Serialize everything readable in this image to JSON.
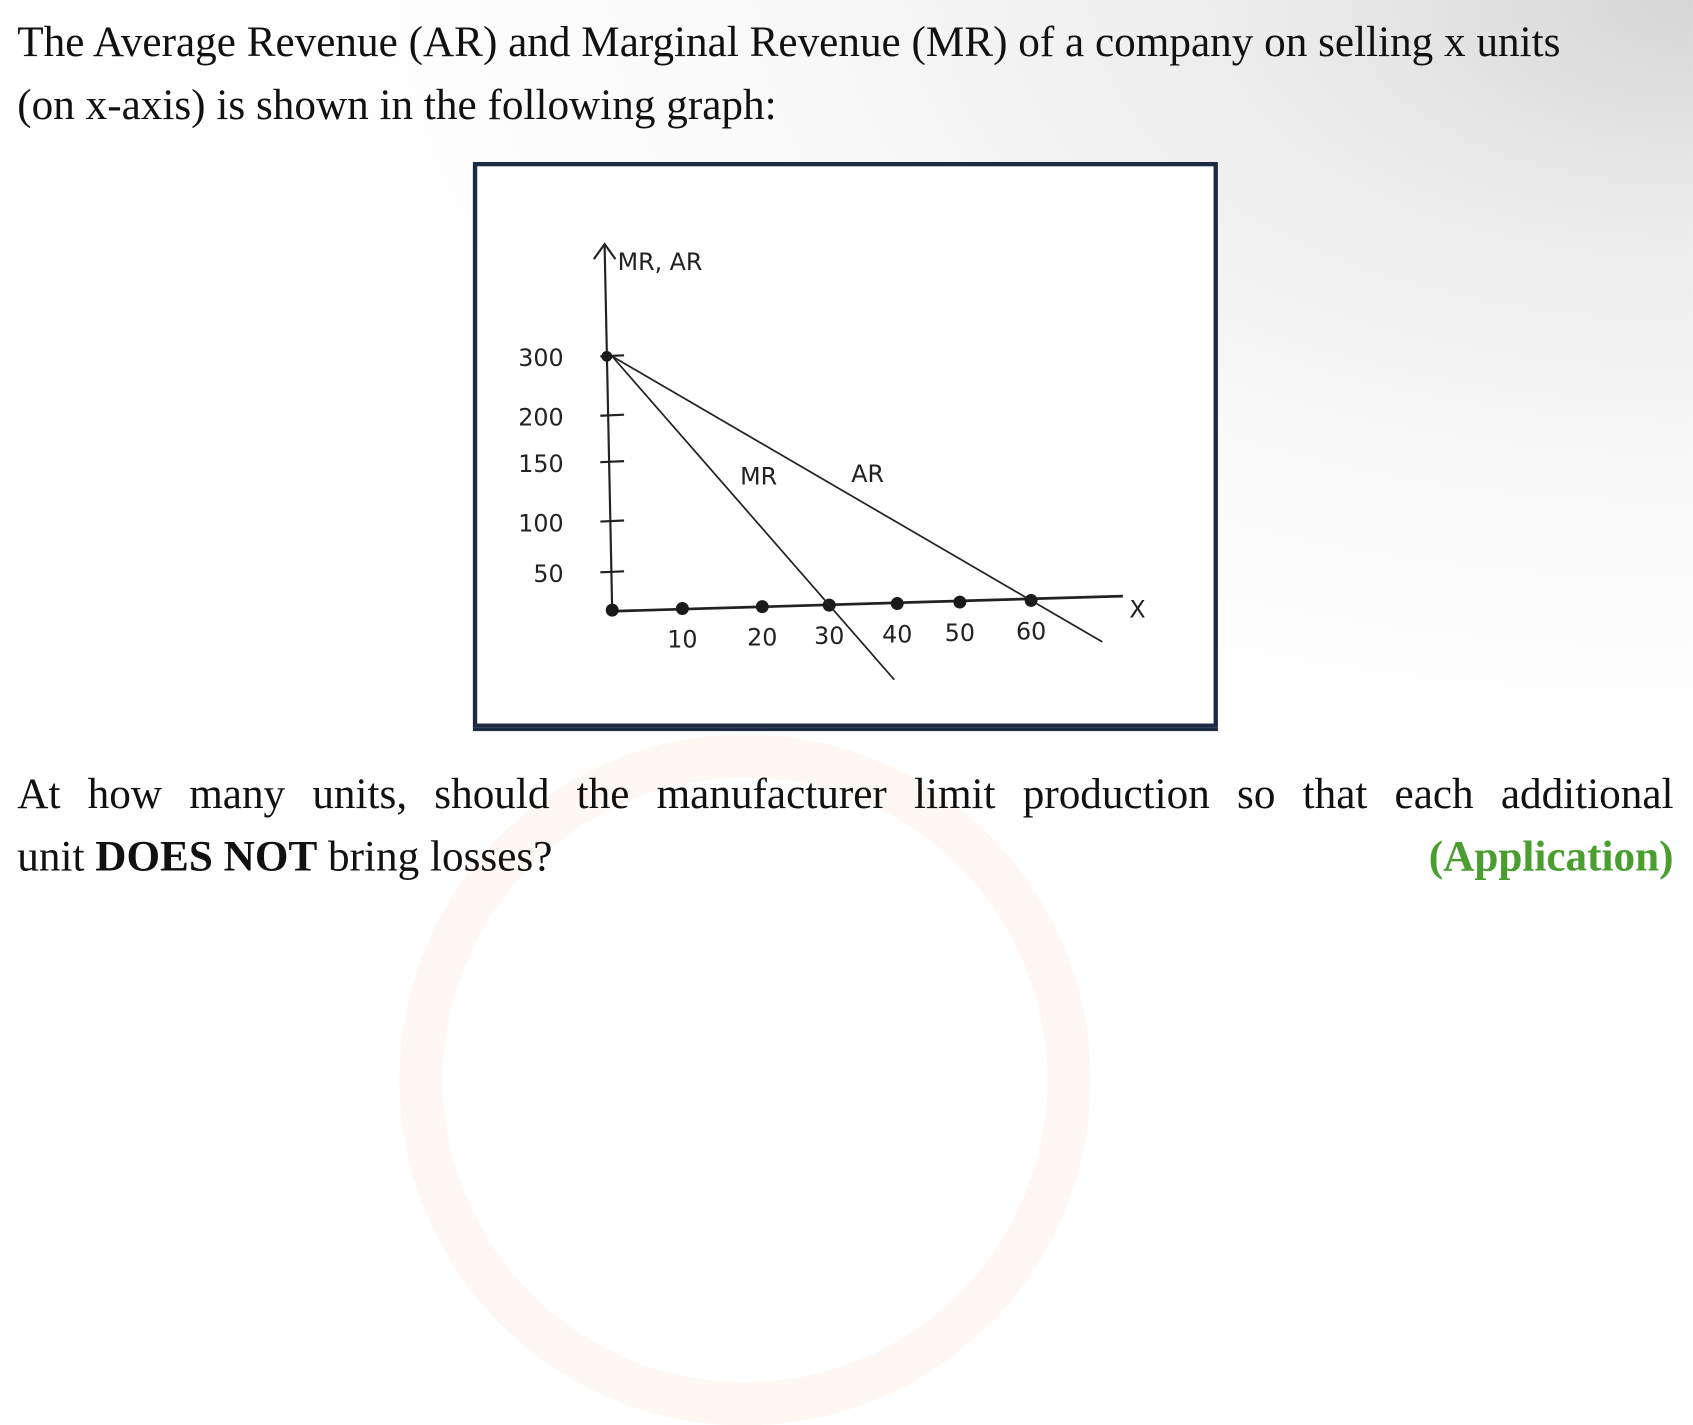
{
  "question": {
    "line1": "The Average Revenue (AR) and Marginal Revenue (MR) of a company on selling x units",
    "line2": "(on x-axis) is shown in the following graph:",
    "prompt_line1": "At how many units, should the manufacturer limit production so that each additional",
    "prompt_line2_pre": "unit ",
    "prompt_line2_bold": "DOES NOT",
    "prompt_line2_post": " bring losses?",
    "tag": "(Application)",
    "tag_color": "#4a9e2f"
  },
  "chart_data": {
    "type": "line",
    "title": "",
    "xlabel": "X",
    "ylabel": "MR, AR",
    "x_ticks": [
      10,
      20,
      30,
      40,
      50,
      60
    ],
    "x_tick_labels": [
      "10",
      "20",
      "30",
      "40",
      "50",
      "60"
    ],
    "y_ticks": [
      50,
      100,
      150,
      200,
      300
    ],
    "y_tick_labels": [
      "50",
      "100",
      "150",
      "200",
      "300"
    ],
    "xlim": [
      0,
      70
    ],
    "ylim": [
      0,
      300
    ],
    "grid": false,
    "axis_points_x": [
      0,
      10,
      20,
      30,
      40,
      50,
      60
    ],
    "series": [
      {
        "name": "AR",
        "points": [
          [
            0,
            300
          ],
          [
            60,
            0
          ]
        ]
      },
      {
        "name": "MR",
        "points": [
          [
            0,
            300
          ],
          [
            30,
            0
          ]
        ]
      }
    ]
  }
}
